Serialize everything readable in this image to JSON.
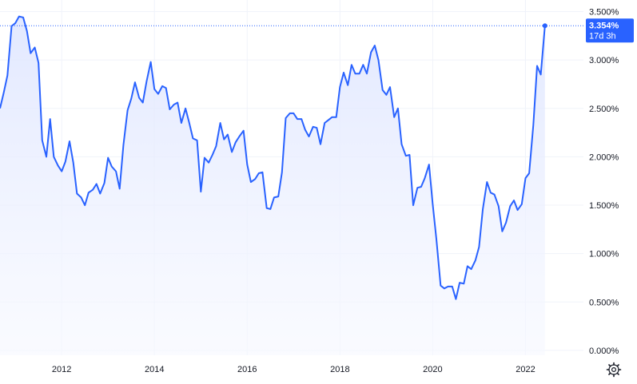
{
  "colors": {
    "line": "#2962ff",
    "area_top": "#dfe6ff",
    "area_bottom": "#f6f8ff",
    "grid": "#f0f3fa",
    "badge": "#2962ff"
  },
  "last_value": {
    "label": "3.354%",
    "countdown": "17d 3h",
    "value": 3.354
  },
  "chart_data": {
    "type": "area",
    "title": "",
    "xlabel": "",
    "ylabel": "",
    "x_ticks": [
      {
        "x": 2012.0,
        "label": "2012"
      },
      {
        "x": 2014.0,
        "label": "2014"
      },
      {
        "x": 2016.0,
        "label": "2016"
      },
      {
        "x": 2018.0,
        "label": "2018"
      },
      {
        "x": 2020.0,
        "label": "2020"
      },
      {
        "x": 2022.0,
        "label": "2022"
      }
    ],
    "y_ticks": [
      {
        "y": 0.0,
        "label": "0.000%"
      },
      {
        "y": 0.5,
        "label": "0.500%"
      },
      {
        "y": 1.0,
        "label": "1.000%"
      },
      {
        "y": 1.5,
        "label": "1.500%"
      },
      {
        "y": 2.0,
        "label": "2.000%"
      },
      {
        "y": 2.5,
        "label": "2.500%"
      },
      {
        "y": 3.0,
        "label": "3.000%"
      },
      {
        "y": 3.5,
        "label": "3.500%"
      }
    ],
    "xlim": [
      2010.67,
      2023.25
    ],
    "ylim": [
      -0.05,
      3.62
    ],
    "grid": true,
    "legend": "none",
    "series": [
      {
        "x": [
          2010.67,
          2010.75,
          2010.83,
          2010.92,
          2011.0,
          2011.08,
          2011.17,
          2011.25,
          2011.33,
          2011.42,
          2011.5,
          2011.58,
          2011.67,
          2011.75,
          2011.83,
          2011.92,
          2012.0,
          2012.08,
          2012.17,
          2012.25,
          2012.33,
          2012.42,
          2012.5,
          2012.58,
          2012.67,
          2012.75,
          2012.83,
          2012.92,
          2013.0,
          2013.08,
          2013.17,
          2013.25,
          2013.33,
          2013.42,
          2013.5,
          2013.58,
          2013.67,
          2013.75,
          2013.83,
          2013.92,
          2014.0,
          2014.08,
          2014.17,
          2014.25,
          2014.33,
          2014.42,
          2014.5,
          2014.58,
          2014.67,
          2014.75,
          2014.83,
          2014.92,
          2015.0,
          2015.08,
          2015.17,
          2015.25,
          2015.33,
          2015.42,
          2015.5,
          2015.58,
          2015.67,
          2015.75,
          2015.83,
          2015.92,
          2016.0,
          2016.08,
          2016.17,
          2016.25,
          2016.33,
          2016.42,
          2016.5,
          2016.58,
          2016.67,
          2016.75,
          2016.83,
          2016.92,
          2017.0,
          2017.08,
          2017.17,
          2017.25,
          2017.33,
          2017.42,
          2017.5,
          2017.58,
          2017.67,
          2017.75,
          2017.83,
          2017.92,
          2018.0,
          2018.08,
          2018.17,
          2018.25,
          2018.33,
          2018.42,
          2018.5,
          2018.58,
          2018.67,
          2018.75,
          2018.83,
          2018.92,
          2019.0,
          2019.08,
          2019.17,
          2019.25,
          2019.33,
          2019.42,
          2019.5,
          2019.58,
          2019.67,
          2019.75,
          2019.83,
          2019.92,
          2020.0,
          2020.08,
          2020.17,
          2020.25,
          2020.33,
          2020.42,
          2020.5,
          2020.58,
          2020.67,
          2020.75,
          2020.83,
          2020.92,
          2021.0,
          2021.08,
          2021.17,
          2021.25,
          2021.33,
          2021.42,
          2021.5,
          2021.58,
          2021.67,
          2021.75,
          2021.83,
          2021.92,
          2022.0,
          2022.08,
          2022.17,
          2022.25,
          2022.33,
          2022.42
        ],
        "y": [
          2.5,
          2.66,
          2.84,
          3.35,
          3.38,
          3.45,
          3.44,
          3.3,
          3.07,
          3.13,
          2.97,
          2.17,
          2.0,
          2.39,
          2.0,
          1.91,
          1.85,
          1.95,
          2.16,
          1.94,
          1.62,
          1.58,
          1.5,
          1.63,
          1.66,
          1.72,
          1.62,
          1.73,
          1.99,
          1.9,
          1.85,
          1.67,
          2.12,
          2.48,
          2.6,
          2.77,
          2.61,
          2.56,
          2.78,
          2.98,
          2.7,
          2.65,
          2.73,
          2.71,
          2.49,
          2.54,
          2.56,
          2.35,
          2.5,
          2.35,
          2.19,
          2.17,
          1.64,
          1.99,
          1.94,
          2.02,
          2.11,
          2.35,
          2.18,
          2.23,
          2.05,
          2.15,
          2.21,
          2.27,
          1.92,
          1.74,
          1.77,
          1.83,
          1.84,
          1.47,
          1.46,
          1.58,
          1.59,
          1.84,
          2.4,
          2.45,
          2.45,
          2.39,
          2.39,
          2.28,
          2.21,
          2.31,
          2.3,
          2.13,
          2.35,
          2.38,
          2.41,
          2.41,
          2.72,
          2.87,
          2.74,
          2.95,
          2.86,
          2.86,
          2.95,
          2.86,
          3.08,
          3.15,
          3.0,
          2.69,
          2.64,
          2.72,
          2.41,
          2.5,
          2.13,
          2.01,
          2.02,
          1.5,
          1.68,
          1.69,
          1.78,
          1.92,
          1.51,
          1.15,
          0.67,
          0.64,
          0.66,
          0.66,
          0.53,
          0.7,
          0.69,
          0.87,
          0.84,
          0.93,
          1.07,
          1.46,
          1.74,
          1.63,
          1.61,
          1.49,
          1.23,
          1.32,
          1.49,
          1.55,
          1.45,
          1.51,
          1.78,
          1.83,
          2.33,
          2.94,
          2.85,
          3.354
        ]
      }
    ]
  }
}
